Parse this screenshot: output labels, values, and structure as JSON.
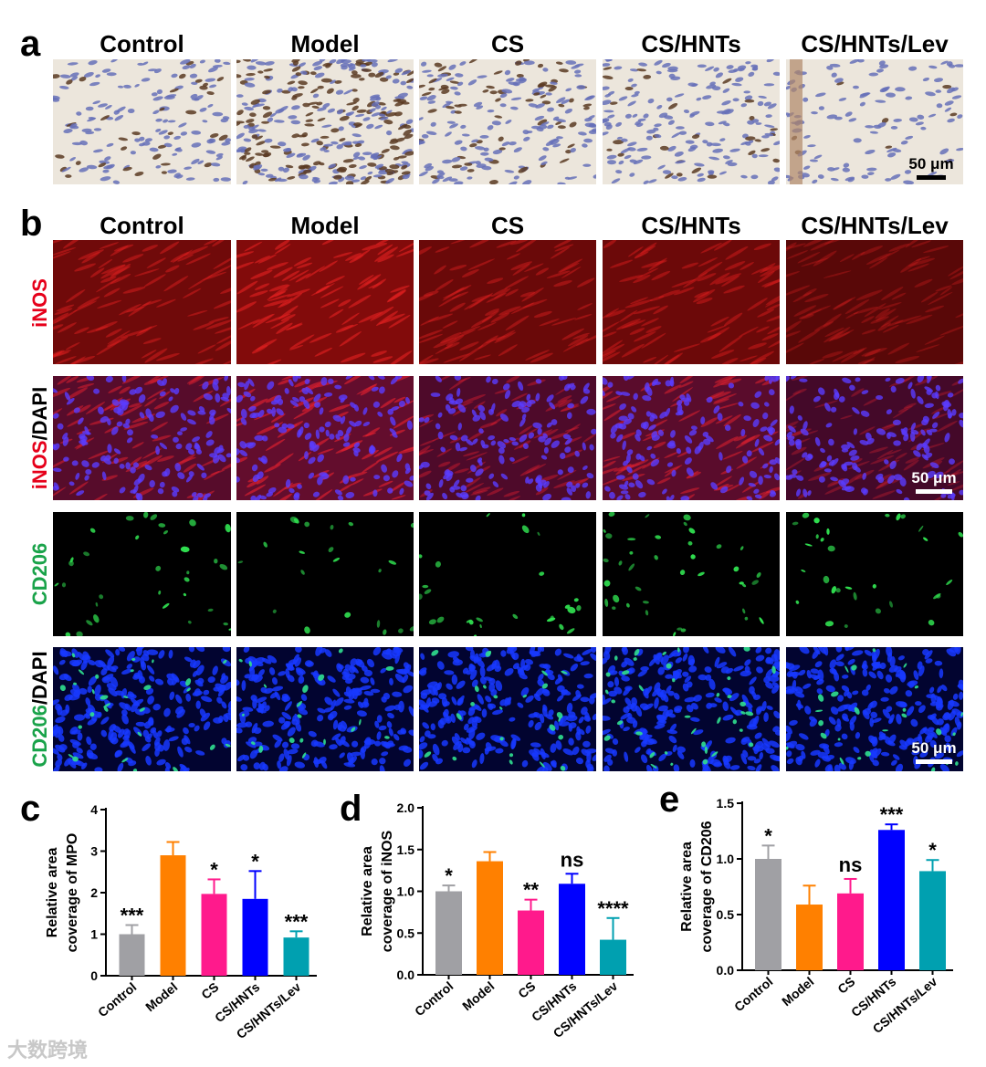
{
  "panel_letters": {
    "a": "a",
    "b": "b",
    "c": "c",
    "d": "d",
    "e": "e"
  },
  "groups": [
    "Control",
    "Model",
    "CS",
    "CS/HNTs",
    "CS/HNTs/Lev"
  ],
  "group_colors": [
    "#a0a0a4",
    "#ff8000",
    "#ff1a8c",
    "#0000ff",
    "#00a0b0"
  ],
  "row_labels": {
    "inos": {
      "main": "iNOS",
      "suffix": ""
    },
    "inos_dapi": {
      "main": "iNOS",
      "suffix": "/DAPI"
    },
    "cd206": {
      "main": "CD206",
      "suffix": ""
    },
    "cd206_dapi": {
      "main": "CD206",
      "suffix": "/DAPI"
    }
  },
  "scale_bars": {
    "a": "50 μm",
    "b_inos": "50 μm",
    "b_cd206": "50 μm"
  },
  "chart_data": [
    {
      "panel": "c",
      "type": "bar",
      "categories": [
        "Control",
        "Model",
        "CS",
        "CS/HNTs",
        "CS/HNTs/Lev"
      ],
      "values": [
        1.0,
        2.9,
        1.97,
        1.85,
        0.92
      ],
      "errors": [
        0.22,
        0.32,
        0.35,
        0.67,
        0.15
      ],
      "significance": [
        "***",
        "",
        "*",
        "*",
        "***"
      ],
      "ylabel": [
        "Relative area",
        "coverage of MPO"
      ],
      "ylim": [
        0,
        4
      ],
      "yticks": [
        "0",
        "1",
        "2",
        "3",
        "4"
      ]
    },
    {
      "panel": "d",
      "type": "bar",
      "categories": [
        "Control",
        "Model",
        "CS",
        "CS/HNTs",
        "CS/HNTs/Lev"
      ],
      "values": [
        1.0,
        1.36,
        0.77,
        1.09,
        0.42
      ],
      "errors": [
        0.07,
        0.11,
        0.13,
        0.12,
        0.26
      ],
      "significance": [
        "*",
        "",
        "**",
        "ns",
        "****"
      ],
      "ylabel": [
        "Relative area",
        "coverage of iNOS"
      ],
      "ylim": [
        0,
        2.0
      ],
      "yticks": [
        "0.0",
        "0.5",
        "1.0",
        "1.5",
        "2.0"
      ]
    },
    {
      "panel": "e",
      "type": "bar",
      "categories": [
        "Control",
        "Model",
        "CS",
        "CS/HNTs",
        "CS/HNTs/Lev"
      ],
      "values": [
        1.0,
        0.59,
        0.69,
        1.26,
        0.89
      ],
      "errors": [
        0.12,
        0.17,
        0.13,
        0.05,
        0.1
      ],
      "significance": [
        "*",
        "",
        "ns",
        "***",
        "*"
      ],
      "ylabel": [
        "Relative area",
        "coverage of CD206"
      ],
      "ylim": [
        0,
        1.5
      ],
      "yticks": [
        "0.0",
        "0.5",
        "1.0",
        "1.5"
      ]
    }
  ],
  "watermark": "大数跨境"
}
